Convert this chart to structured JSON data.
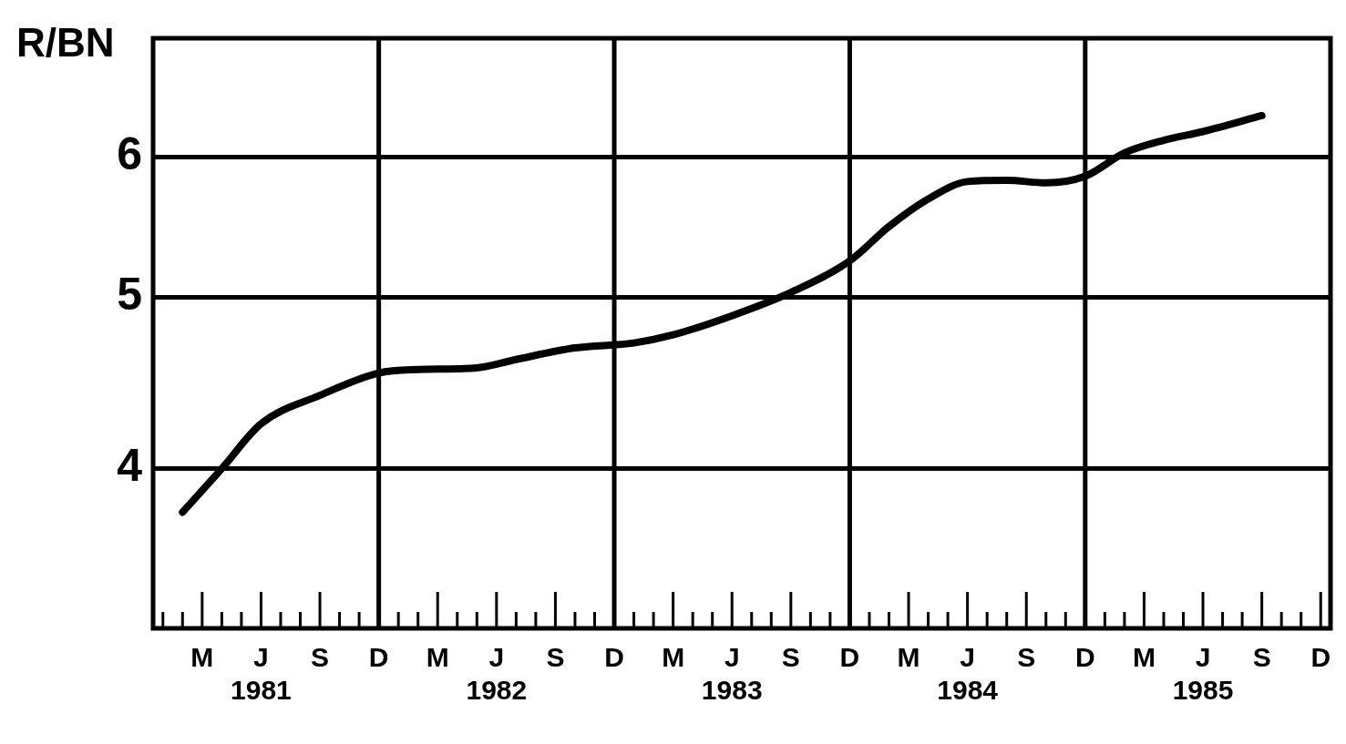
{
  "chart_data": {
    "type": "line",
    "ylabel": "R/BN",
    "categories": [
      null,
      null,
      "M",
      null,
      null,
      "J\n1981",
      null,
      null,
      "S",
      null,
      null,
      "D",
      null,
      null,
      "M",
      null,
      null,
      "J\n1982",
      null,
      null,
      "S",
      null,
      null,
      "D",
      null,
      null,
      "M",
      null,
      null,
      "J\n1983",
      null,
      null,
      "S",
      null,
      null,
      "D",
      null,
      null,
      "M",
      null,
      null,
      "J\n1984",
      null,
      null,
      "S",
      null,
      null,
      "D",
      null,
      null,
      "M",
      null,
      null,
      "J\n1985",
      null,
      null,
      "S",
      null,
      null,
      "D"
    ],
    "series": [
      {
        "color": "#000000",
        "values": [
          null,
          3.78,
          null,
          4.0,
          null,
          4.24,
          null,
          null,
          4.4,
          null,
          null,
          4.53,
          null,
          4.55,
          null,
          null,
          4.56,
          null,
          4.61,
          null,
          null,
          4.68,
          null,
          null,
          4.71,
          null,
          4.76,
          null,
          null,
          4.88,
          null,
          null,
          5.03,
          null,
          null,
          5.24,
          null,
          5.48,
          null,
          5.68,
          null,
          5.81,
          null,
          5.82,
          null,
          5.8,
          null,
          5.85,
          null,
          6.03,
          null,
          6.13,
          null,
          6.2,
          null,
          null,
          6.33,
          null,
          null,
          null
        ]
      }
    ],
    "log": true,
    "ylim": [
      3.25,
      7
    ],
    "yticks": [
      4,
      5,
      6
    ],
    "grid": true,
    "marker": "none",
    "line_style": "solid",
    "legend": false
  }
}
